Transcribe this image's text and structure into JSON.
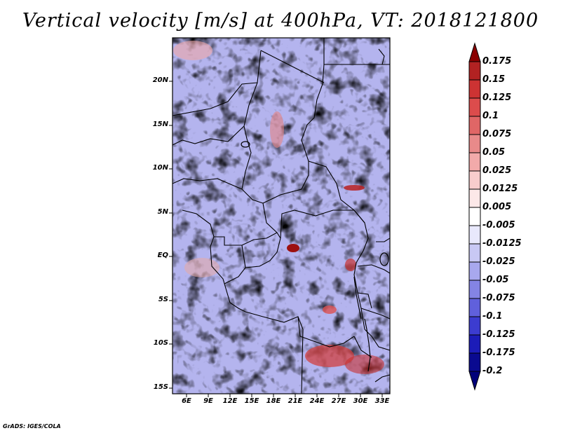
{
  "title": "Vertical velocity [m/s] at 400hPa, VT: 2018121800",
  "footer": "GrADS: IGES/COLA",
  "map": {
    "lat_labels": [
      "20N",
      "15N",
      "10N",
      "5N",
      "EQ",
      "5S",
      "10S",
      "15S"
    ],
    "lon_labels": [
      "6E",
      "9E",
      "12E",
      "15E",
      "18E",
      "21E",
      "24E",
      "27E",
      "30E",
      "33E"
    ]
  },
  "colorbar": {
    "levels": [
      "0.175",
      "0.15",
      "0.125",
      "0.1",
      "0.075",
      "0.05",
      "0.025",
      "0.0125",
      "0.005",
      "-0.005",
      "-0.0125",
      "-0.025",
      "-0.05",
      "-0.075",
      "-0.1",
      "-0.125",
      "-0.175",
      "-0.2"
    ],
    "colors": [
      "#8b0000",
      "#b22222",
      "#cd3333",
      "#dc4c4c",
      "#e06666",
      "#e88a8a",
      "#f2aaaa",
      "#f8cccc",
      "#fce8e8",
      "#ffffff",
      "#e8e8fc",
      "#c8c8f4",
      "#a8a8ee",
      "#8484e4",
      "#6060dc",
      "#3c3cd0",
      "#1c1cb8",
      "#0a0a90",
      "#00007a"
    ]
  },
  "colors": {
    "background": "#ffffff",
    "field_base": "#b4b4ee",
    "borders": "#000000"
  }
}
